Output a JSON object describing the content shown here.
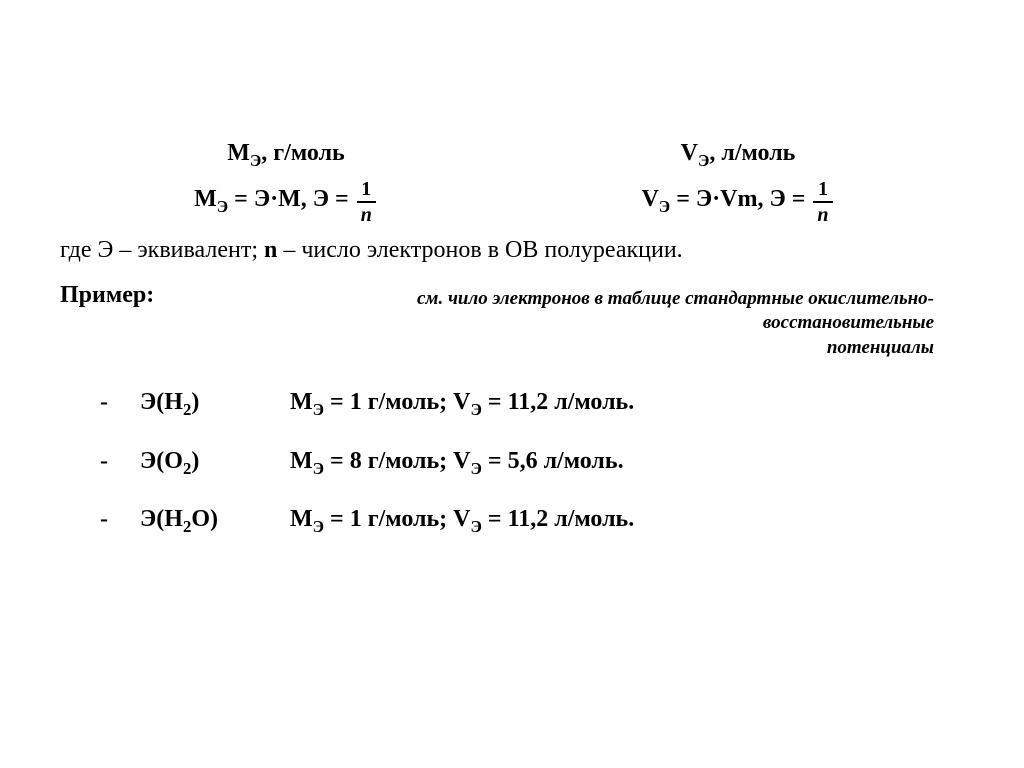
{
  "header": {
    "mass_label_sym": "М",
    "mass_label_sub": "Э",
    "mass_label_unit": ", г/моль",
    "vol_label_sym": "V",
    "vol_label_sub": "Э",
    "vol_label_unit": ", л/моль"
  },
  "formula": {
    "mass_lhs_sym": "М",
    "mass_lhs_sub": "Э",
    "mass_eq": " = Э·М, Э = ",
    "vol_lhs_sym": "V",
    "vol_lhs_sub": "Э",
    "vol_eq": " = Э·Vm, Э = ",
    "frac_num": "1",
    "frac_den": "n"
  },
  "definition": {
    "prefix": "где Э – эквивалент;  ",
    "n_sym": "n",
    "suffix": " –  число электронов в ОВ полуреакции."
  },
  "example": {
    "header": "Пример:",
    "note_line1": "см. чило электронов в таблице стандартные  окислительно-восстановительные",
    "note_line2": "потенциалы",
    "rows": [
      {
        "dash": "-",
        "species_E": "Э(Н",
        "species_sub": "2",
        "species_close": ")",
        "m_sym": "М",
        "m_sub": "Э",
        "m_val": "  =  1 г/моль;  ",
        "v_sym": "V",
        "v_sub": "Э",
        "v_val": "  =  11,2 л/моль."
      },
      {
        "dash": "-",
        "species_E": "Э(О",
        "species_sub": "2",
        "species_close": ")",
        "m_sym": "М",
        "m_sub": "Э",
        "m_val": "  =  8 г/моль;  ",
        "v_sym": "V",
        "v_sub": "Э",
        "v_val": "  =  5,6 л/моль."
      },
      {
        "dash": "-",
        "species_E": "Э(Н",
        "species_sub": "2",
        "species_close": "О)",
        "m_sym": "М",
        "m_sub": "Э",
        "m_val": "  =  1 г/моль;  ",
        "v_sym": "V",
        "v_sub": "Э",
        "v_val": "  =  11,2 л/моль."
      }
    ]
  },
  "style": {
    "background": "#ffffff",
    "text_color": "#000000",
    "font_family": "Times New Roman",
    "base_fontsize_pt": 18,
    "note_fontsize_pt": 14
  }
}
